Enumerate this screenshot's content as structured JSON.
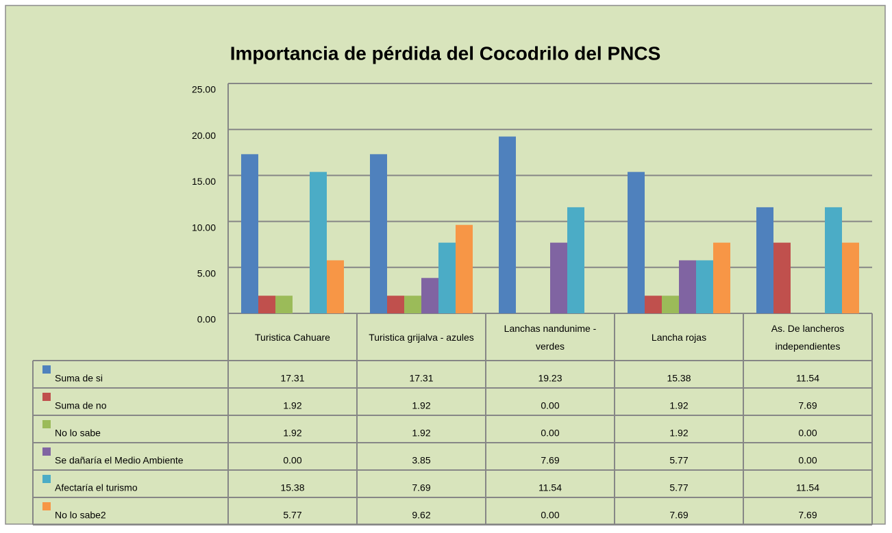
{
  "chart_data": {
    "type": "bar",
    "title": "Importancia de pérdida del Cocodrilo del PNCS",
    "categories": [
      "Turistica Cahuare",
      "Turistica grijalva - azules",
      "Lanchas nandunime - verdes",
      "Lancha rojas",
      "As. De lancheros independientes"
    ],
    "series": [
      {
        "name": "Suma de si",
        "color": "#4f81bd",
        "values": [
          17.31,
          17.31,
          19.23,
          15.38,
          11.54
        ],
        "value_labels": [
          "17.31",
          "17.31",
          "19.23",
          "15.38",
          "11.54"
        ]
      },
      {
        "name": "Suma de no",
        "color": "#c0504d",
        "values": [
          1.92,
          1.92,
          0,
          1.92,
          7.69
        ],
        "value_labels": [
          "1.92",
          "1.92",
          "0.00",
          "1.92",
          "7.69"
        ]
      },
      {
        "name": "No lo sabe",
        "color": "#9bbb59",
        "values": [
          1.92,
          1.92,
          0,
          1.92,
          0
        ],
        "value_labels": [
          "1.92",
          "1.92",
          "0.00",
          "1.92",
          "0.00"
        ]
      },
      {
        "name": "Se dañaría el Medio Ambiente",
        "color": "#8064a2",
        "values": [
          0,
          3.85,
          7.69,
          5.77,
          0
        ],
        "value_labels": [
          "0.00",
          "3.85",
          "7.69",
          "5.77",
          "0.00"
        ]
      },
      {
        "name": "Afectaría el turismo",
        "color": "#4bacc6",
        "values": [
          15.38,
          7.69,
          11.54,
          5.77,
          11.54
        ],
        "value_labels": [
          "15.38",
          "7.69",
          "11.54",
          "5.77",
          "11.54"
        ]
      },
      {
        "name": "No lo sabe2",
        "color": "#f79646",
        "values": [
          5.77,
          9.62,
          0,
          7.69,
          7.69
        ],
        "value_labels": [
          "5.77",
          "9.62",
          "0.00",
          "7.69",
          "7.69"
        ]
      }
    ],
    "ylim": [
      0,
      25
    ],
    "yticks": [
      {
        "value": 0,
        "label": "0.00"
      },
      {
        "value": 5,
        "label": "5.00"
      },
      {
        "value": 10,
        "label": "10.00"
      },
      {
        "value": 15,
        "label": "15.00"
      },
      {
        "value": 20,
        "label": "20.00"
      },
      {
        "value": 25,
        "label": "25.00"
      }
    ],
    "grid": true
  }
}
